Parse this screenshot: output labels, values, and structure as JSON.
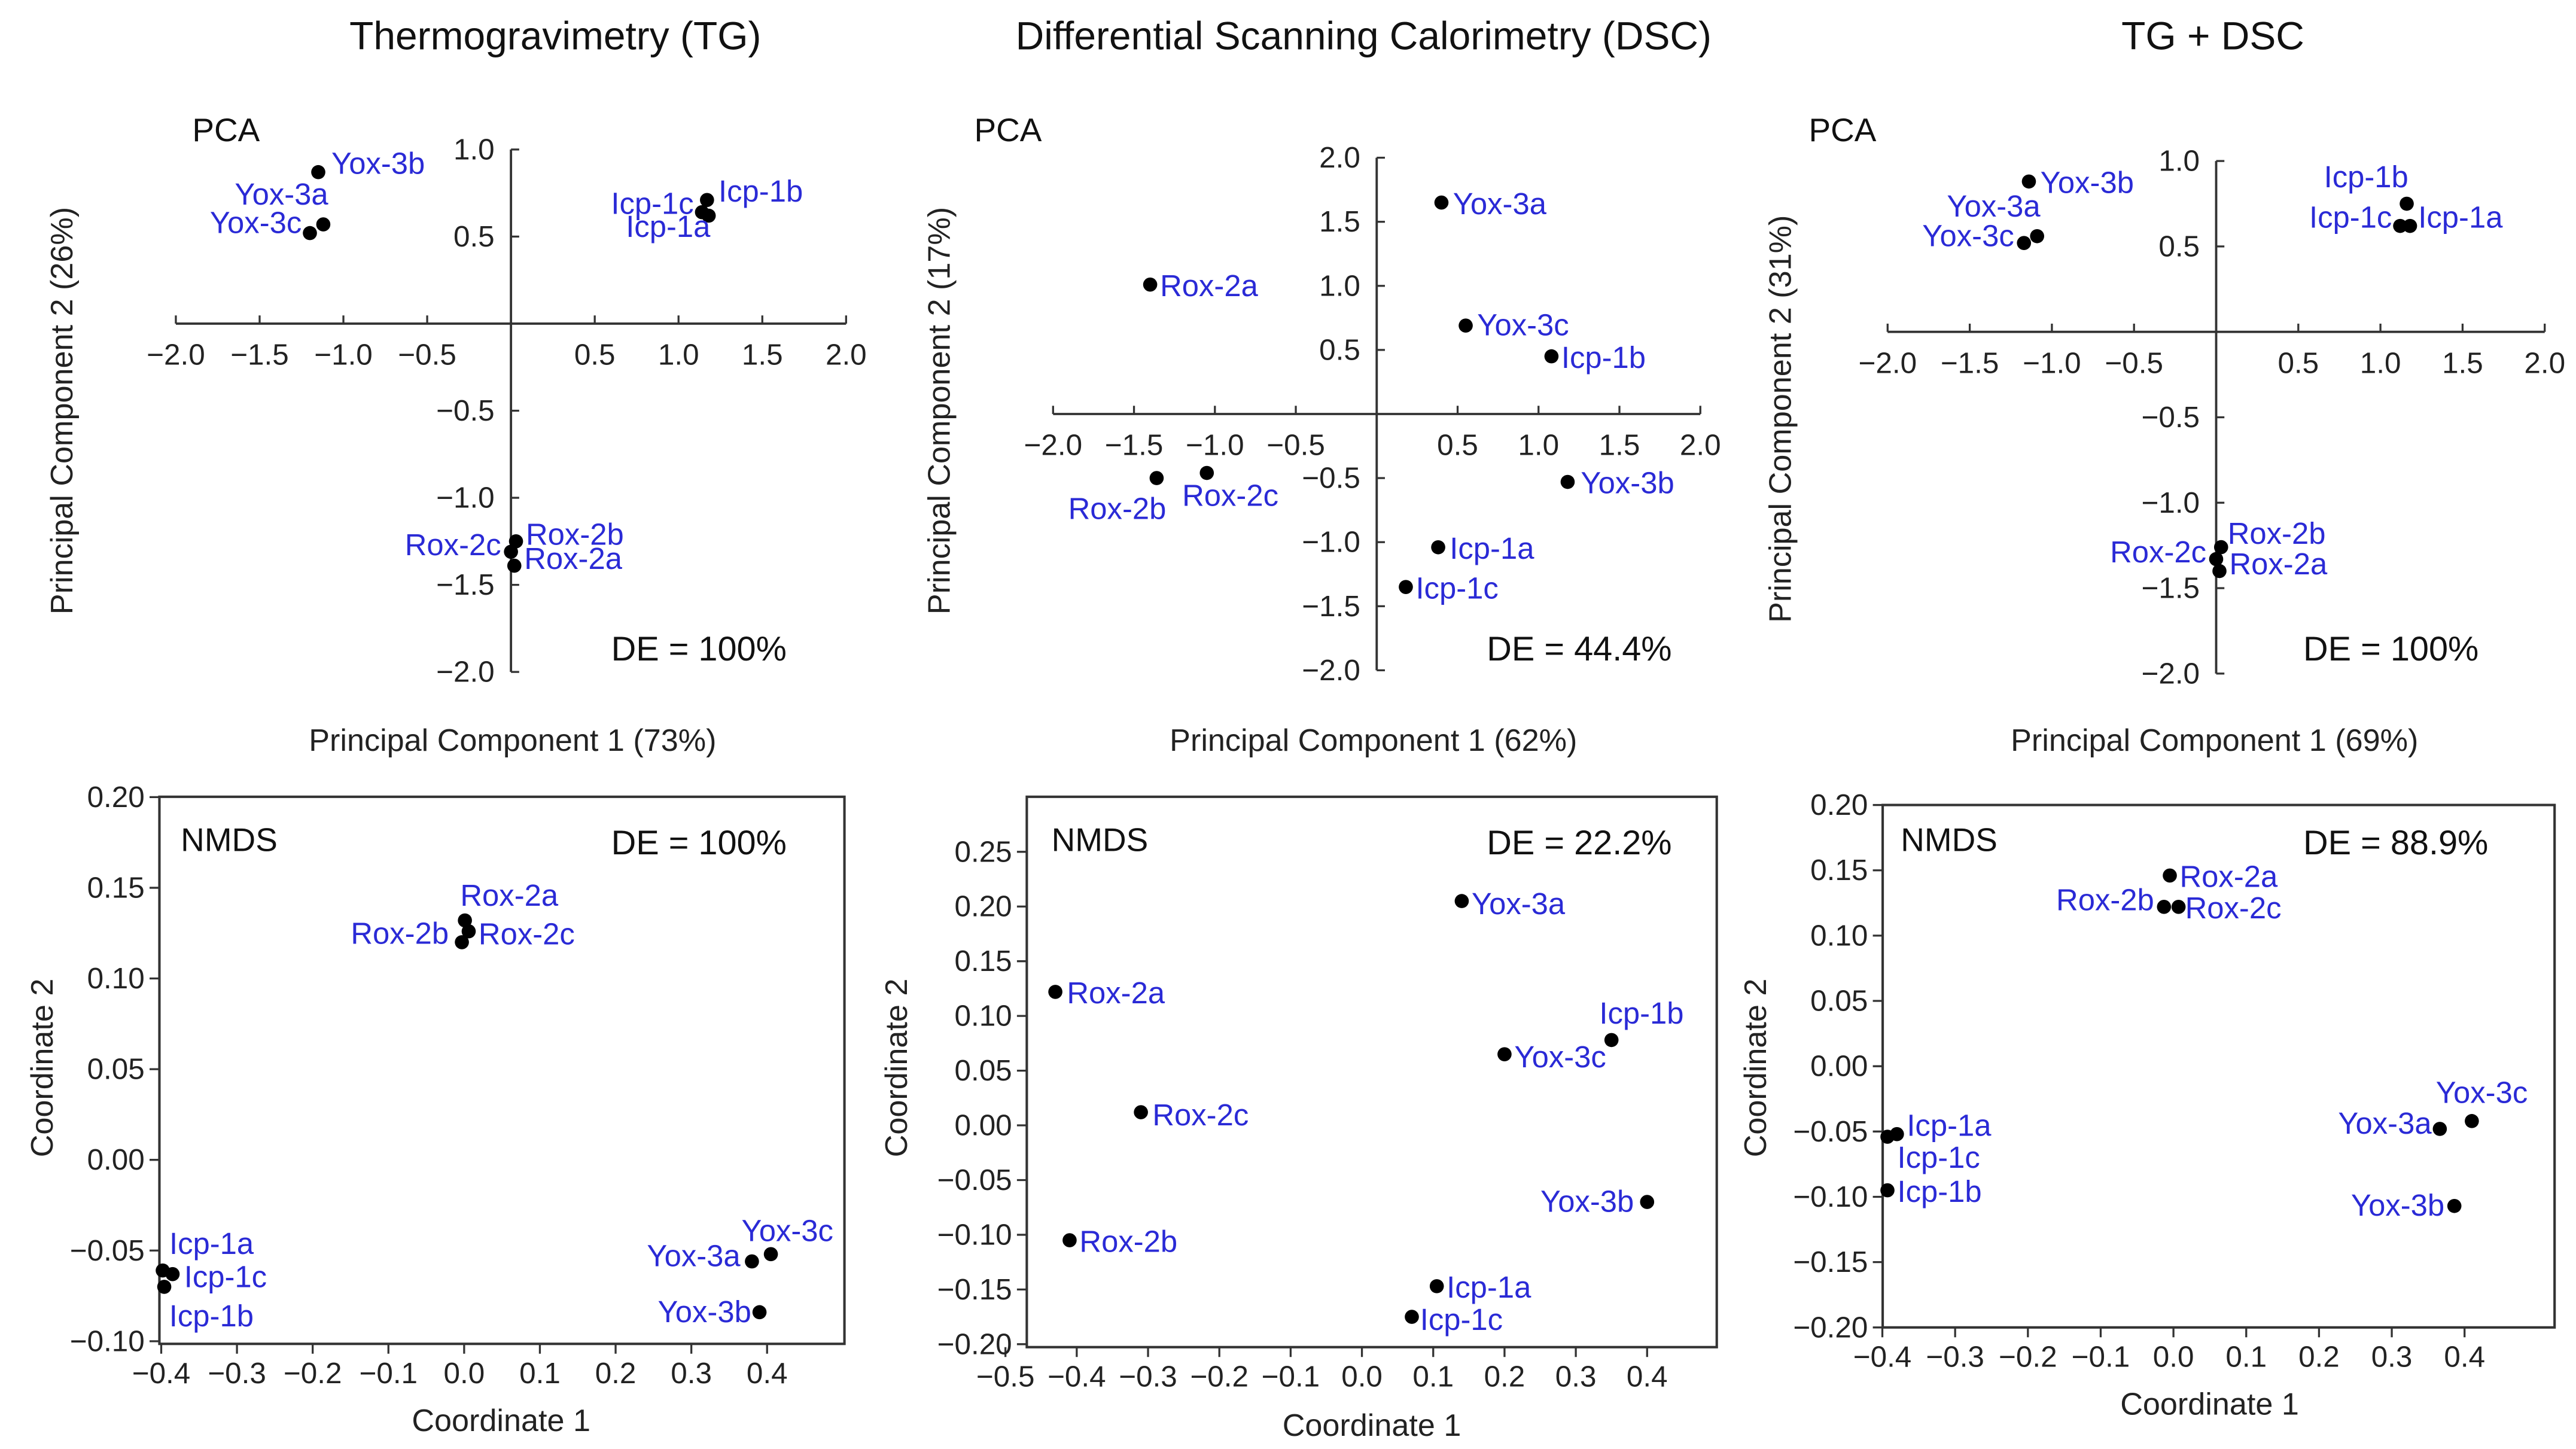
{
  "column_titles": [
    "Thermogravimetry (TG)",
    "Differential Scanning Calorimetry (DSC)",
    "TG + DSC"
  ],
  "colors": {
    "point": "#000000",
    "label": "#2a2ad6",
    "axis": "#333333"
  },
  "chart_data": [
    {
      "type": "scatter",
      "method": "PCA",
      "de": "DE = 100%",
      "xlabel": "Principal Component 1  (73%)",
      "ylabel": "Principal Component 2  (26%)",
      "xlim": [
        -2.0,
        2.0
      ],
      "ylim": [
        -2.0,
        1.0
      ],
      "xticks": [
        -2.0,
        -1.5,
        -1.0,
        -0.5,
        0.5,
        1.0,
        1.5,
        2.0
      ],
      "xtick_labels": [
        "−2.0",
        "−1.5",
        "−1.0",
        "−0.5",
        "0.5",
        "1.0",
        "1.5",
        "2.0"
      ],
      "yticks": [
        1.0,
        0.5,
        -0.5,
        -1.0,
        -1.5,
        -2.0
      ],
      "ytick_labels": [
        "1.0",
        "0.5",
        "−0.5",
        "−1.0",
        "−1.5",
        "−2.0"
      ],
      "points": [
        {
          "label": "Yox-3b",
          "x": -1.15,
          "y": 0.87
        },
        {
          "label": "Yox-3a",
          "x": -1.12,
          "y": 0.57
        },
        {
          "label": "Yox-3c",
          "x": -1.2,
          "y": 0.52
        },
        {
          "label": "Icp-1b",
          "x": 1.17,
          "y": 0.71
        },
        {
          "label": "Icp-1c",
          "x": 1.14,
          "y": 0.64
        },
        {
          "label": "Icp-1a",
          "x": 1.18,
          "y": 0.62
        },
        {
          "label": "Rox-2b",
          "x": 0.03,
          "y": -1.25
        },
        {
          "label": "Rox-2c",
          "x": 0.0,
          "y": -1.31
        },
        {
          "label": "Rox-2a",
          "x": 0.02,
          "y": -1.39
        }
      ]
    },
    {
      "type": "scatter",
      "method": "PCA",
      "de": "DE = 44.4%",
      "xlabel": "Principal Component 1  (62%)",
      "ylabel": "Principal Component 2  (17%)",
      "xlim": [
        -2.0,
        2.0
      ],
      "ylim": [
        -2.0,
        2.0
      ],
      "xticks": [
        -2.0,
        -1.5,
        -1.0,
        -0.5,
        0.5,
        1.0,
        1.5,
        2.0
      ],
      "xtick_labels": [
        "−2.0",
        "−1.5",
        "−1.0",
        "−0.5",
        "0.5",
        "1.0",
        "1.5",
        "2.0"
      ],
      "yticks": [
        2.0,
        1.5,
        1.0,
        0.5,
        -0.5,
        -1.0,
        -1.5,
        -2.0
      ],
      "ytick_labels": [
        "2.0",
        "1.5",
        "1.0",
        "0.5",
        "−0.5",
        "−1.0",
        "−1.5",
        "−2.0"
      ],
      "points": [
        {
          "label": "Yox-3a",
          "x": 0.4,
          "y": 1.65
        },
        {
          "label": "Rox-2a",
          "x": -1.4,
          "y": 1.01
        },
        {
          "label": "Yox-3c",
          "x": 0.55,
          "y": 0.69
        },
        {
          "label": "Icp-1b",
          "x": 1.08,
          "y": 0.45
        },
        {
          "label": "Yox-3b",
          "x": 1.18,
          "y": -0.53
        },
        {
          "label": "Rox-2b",
          "x": -1.36,
          "y": -0.5
        },
        {
          "label": "Rox-2c",
          "x": -1.05,
          "y": -0.46
        },
        {
          "label": "Icp-1a",
          "x": 0.38,
          "y": -1.04
        },
        {
          "label": "Icp-1c",
          "x": 0.18,
          "y": -1.35
        }
      ]
    },
    {
      "type": "scatter",
      "method": "PCA",
      "de": "DE = 100%",
      "xlabel": "Principal Component 1  (69%)",
      "ylabel": "Principal Component 2  (31%)",
      "xlim": [
        -2.0,
        2.0
      ],
      "ylim": [
        -2.0,
        1.0
      ],
      "xticks": [
        -2.0,
        -1.5,
        -1.0,
        -0.5,
        0.5,
        1.0,
        1.5,
        2.0
      ],
      "xtick_labels": [
        "−2.0",
        "−1.5",
        "−1.0",
        "−0.5",
        "0.5",
        "1.0",
        "1.5",
        "2.0"
      ],
      "yticks": [
        1.0,
        0.5,
        -0.5,
        -1.0,
        -1.5,
        -2.0
      ],
      "ytick_labels": [
        "1.0",
        "0.5",
        "−0.5",
        "−1.0",
        "−1.5",
        "−2.0"
      ],
      "points": [
        {
          "label": "Yox-3b",
          "x": -1.14,
          "y": 0.88
        },
        {
          "label": "Yox-3a",
          "x": -1.09,
          "y": 0.56
        },
        {
          "label": "Yox-3c",
          "x": -1.17,
          "y": 0.52
        },
        {
          "label": "Icp-1b",
          "x": 1.16,
          "y": 0.75
        },
        {
          "label": "Icp-1c",
          "x": 1.12,
          "y": 0.62
        },
        {
          "label": "Icp-1a",
          "x": 1.18,
          "y": 0.62
        },
        {
          "label": "Rox-2b",
          "x": 0.03,
          "y": -1.26
        },
        {
          "label": "Rox-2c",
          "x": 0.0,
          "y": -1.33
        },
        {
          "label": "Rox-2a",
          "x": 0.02,
          "y": -1.4
        }
      ]
    },
    {
      "type": "scatter",
      "method": "NMDS",
      "de": "DE = 100%",
      "xlabel": "Coordinate 1",
      "ylabel": "Coordinate 2",
      "xlim": [
        -0.4,
        0.5
      ],
      "ylim": [
        -0.1,
        0.2
      ],
      "xticks": [
        -0.4,
        -0.3,
        -0.2,
        -0.1,
        0.0,
        0.1,
        0.2,
        0.3,
        0.4
      ],
      "xtick_labels": [
        "−0.4",
        "−0.3",
        "−0.2",
        "−0.1",
        "0.0",
        "0.1",
        "0.2",
        "0.3",
        "0.4"
      ],
      "yticks": [
        0.2,
        0.15,
        0.1,
        0.05,
        0.0,
        -0.05,
        -0.1
      ],
      "ytick_labels": [
        "0.20",
        "0.15",
        "0.10",
        "0.05",
        "0.00",
        "−0.05",
        "−0.10"
      ],
      "points": [
        {
          "label": "Rox-2a",
          "x": 0.001,
          "y": 0.132
        },
        {
          "label": "Rox-2c",
          "x": 0.006,
          "y": 0.126
        },
        {
          "label": "Rox-2b",
          "x": -0.003,
          "y": 0.12
        },
        {
          "label": "Icp-1a",
          "x": -0.398,
          "y": -0.061
        },
        {
          "label": "Icp-1c",
          "x": -0.385,
          "y": -0.063
        },
        {
          "label": "Icp-1b",
          "x": -0.396,
          "y": -0.07
        },
        {
          "label": "Yox-3a",
          "x": 0.38,
          "y": -0.056
        },
        {
          "label": "Yox-3c",
          "x": 0.405,
          "y": -0.052
        },
        {
          "label": "Yox-3b",
          "x": 0.39,
          "y": -0.084
        }
      ]
    },
    {
      "type": "scatter",
      "method": "NMDS",
      "de": "DE = 22.2%",
      "xlabel": "Coordinate 1",
      "ylabel": "Coordinate 2",
      "xlim": [
        -0.47,
        0.5
      ],
      "ylim": [
        -0.205,
        0.3
      ],
      "xticks": [
        -0.5,
        -0.4,
        -0.3,
        -0.2,
        -0.1,
        0.0,
        0.1,
        0.2,
        0.3,
        0.4
      ],
      "xtick_labels": [
        "−0.5",
        "−0.4",
        "−0.3",
        "−0.2",
        "−0.1",
        "0.0",
        "0.1",
        "0.2",
        "0.3",
        "0.4"
      ],
      "yticks": [
        0.25,
        0.2,
        0.15,
        0.1,
        0.05,
        0.0,
        -0.05,
        -0.1,
        -0.15,
        -0.2
      ],
      "ytick_labels": [
        "0.25",
        "0.20",
        "0.15",
        "0.10",
        "0.05",
        "0.00",
        "−0.05",
        "−0.10",
        "−0.15",
        "−0.20"
      ],
      "points": [
        {
          "label": "Yox-3a",
          "x": 0.14,
          "y": 0.205
        },
        {
          "label": "Rox-2a",
          "x": -0.43,
          "y": 0.122
        },
        {
          "label": "Icp-1b",
          "x": 0.35,
          "y": 0.078
        },
        {
          "label": "Yox-3c",
          "x": 0.2,
          "y": 0.065
        },
        {
          "label": "Rox-2c",
          "x": -0.31,
          "y": 0.012
        },
        {
          "label": "Rox-2b",
          "x": -0.41,
          "y": -0.105
        },
        {
          "label": "Yox-3b",
          "x": 0.4,
          "y": -0.07
        },
        {
          "label": "Icp-1a",
          "x": 0.105,
          "y": -0.147
        },
        {
          "label": "Icp-1c",
          "x": 0.07,
          "y": -0.175
        }
      ]
    },
    {
      "type": "scatter",
      "method": "NMDS",
      "de": "DE = 88.9%",
      "xlabel": "Coordinate 1",
      "ylabel": "Coordinate 2",
      "xlim": [
        -0.4,
        0.52
      ],
      "ylim": [
        -0.2,
        0.2
      ],
      "xticks": [
        -0.4,
        -0.3,
        -0.2,
        -0.1,
        0.0,
        0.1,
        0.2,
        0.3,
        0.4
      ],
      "xtick_labels": [
        "−0.4",
        "−0.3",
        "−0.2",
        "−0.1",
        "0.0",
        "0.1",
        "0.2",
        "0.3",
        "0.4"
      ],
      "yticks": [
        0.2,
        0.15,
        0.1,
        0.05,
        0.0,
        -0.05,
        -0.1,
        -0.15,
        -0.2
      ],
      "ytick_labels": [
        "0.20",
        "0.15",
        "0.10",
        "0.05",
        "0.00",
        "−0.05",
        "−0.10",
        "−0.15",
        "−0.20"
      ],
      "points": [
        {
          "label": "Rox-2a",
          "x": -0.005,
          "y": 0.146
        },
        {
          "label": "Rox-2b",
          "x": -0.013,
          "y": 0.122
        },
        {
          "label": "Rox-2c",
          "x": 0.007,
          "y": 0.122
        },
        {
          "label": "Icp-1a",
          "x": -0.38,
          "y": -0.052
        },
        {
          "label": "Icp-1c",
          "x": -0.393,
          "y": -0.054
        },
        {
          "label": "Icp-1b",
          "x": -0.393,
          "y": -0.095
        },
        {
          "label": "Yox-3a",
          "x": 0.366,
          "y": -0.048
        },
        {
          "label": "Yox-3c",
          "x": 0.41,
          "y": -0.042
        },
        {
          "label": "Yox-3b",
          "x": 0.386,
          "y": -0.107
        }
      ]
    }
  ]
}
